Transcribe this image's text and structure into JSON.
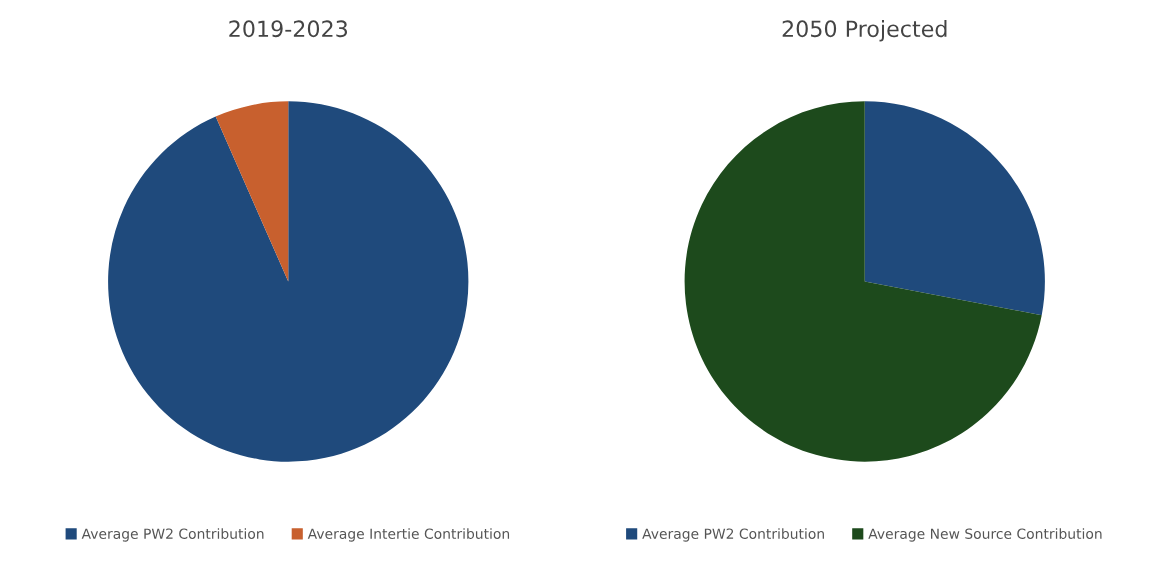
{
  "chart_data": [
    {
      "type": "pie",
      "title": "2019-2023",
      "categories": [
        "Average PW2 Contribution",
        "Average Intertie Contribution"
      ],
      "values": [
        93.4,
        6.6
      ],
      "colors": [
        "#1f4a7c",
        "#c8602e"
      ],
      "legend": "bottom"
    },
    {
      "type": "pie",
      "title": "2050 Projected",
      "categories": [
        "Average PW2 Contribution",
        "Average New Source Contribution"
      ],
      "values": [
        28,
        72
      ],
      "colors": [
        "#1f4a7c",
        "#1d4a1c"
      ],
      "legend": "bottom"
    }
  ]
}
